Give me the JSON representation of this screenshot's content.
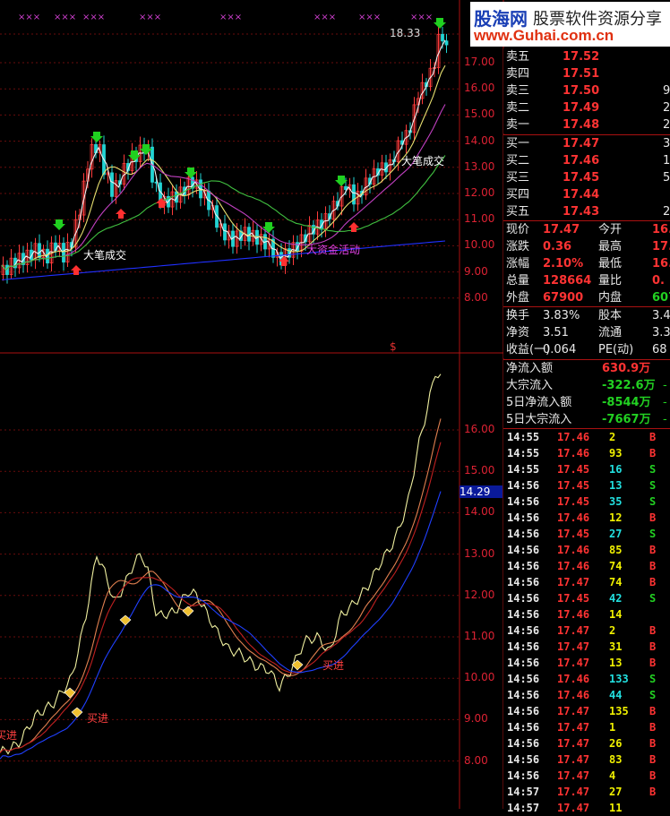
{
  "logo": {
    "brand": "股海网",
    "slogan": "股票软件资源分享",
    "url": "www.Guhai.com.cn"
  },
  "main_chart": {
    "high_label": "18.33",
    "y_ticks": [
      "17.00",
      "16.00",
      "15.00",
      "14.00",
      "13.00",
      "12.00",
      "11.00",
      "10.00",
      "9.00",
      "8.00"
    ],
    "annotations": {
      "big_trade_1": "大笔成交",
      "big_trade_2": "大笔成交",
      "big_money": "大资金活动"
    },
    "dollar_mark": "$"
  },
  "sub_chart": {
    "y_ticks": [
      "16.00",
      "15.00",
      "14.00",
      "13.00",
      "12.00",
      "11.00",
      "10.00",
      "9.00",
      "8.00"
    ],
    "current_value": "14.29",
    "buy_label": "买进"
  },
  "order_book": {
    "asks": [
      {
        "label": "卖五",
        "price": "17.52",
        "vol": ""
      },
      {
        "label": "卖四",
        "price": "17.51",
        "vol": ""
      },
      {
        "label": "卖三",
        "price": "17.50",
        "vol": "9"
      },
      {
        "label": "卖二",
        "price": "17.49",
        "vol": "2"
      },
      {
        "label": "卖一",
        "price": "17.48",
        "vol": "2"
      }
    ],
    "bids": [
      {
        "label": "买一",
        "price": "17.47",
        "vol": "3"
      },
      {
        "label": "买二",
        "price": "17.46",
        "vol": "1"
      },
      {
        "label": "买三",
        "price": "17.45",
        "vol": "5"
      },
      {
        "label": "买四",
        "price": "17.44",
        "vol": ""
      },
      {
        "label": "买五",
        "price": "17.43",
        "vol": "2"
      }
    ]
  },
  "quote": [
    {
      "l1": "现价",
      "v1": "17.47",
      "l2": "今开",
      "v2": "16."
    },
    {
      "l1": "涨跌",
      "v1": "0.36",
      "l2": "最高",
      "v2": "17."
    },
    {
      "l1": "涨幅",
      "v1": "2.10%",
      "l2": "最低",
      "v2": "16."
    },
    {
      "l1": "总量",
      "v1": "128664",
      "l2": "量比",
      "v2": "0."
    },
    {
      "l1": "外盘",
      "v1": "67900",
      "l2": "内盘",
      "v2": "607"
    }
  ],
  "fundamentals": [
    {
      "l1": "换手",
      "v1": "3.83%",
      "l2": "股本",
      "v2": "3.40"
    },
    {
      "l1": "净资",
      "v1": "3.51",
      "l2": "流通",
      "v2": "3.36"
    },
    {
      "l1": "收益(一)",
      "v1": "0.064",
      "l2": "PE(动)",
      "v2": "68"
    }
  ],
  "flows": [
    {
      "label": "净流入额",
      "value": "630.9万",
      "tail": ""
    },
    {
      "label": "大宗流入",
      "value": "-322.6万",
      "tail": "-"
    },
    {
      "label": "5日净流入额",
      "value": "-8544万",
      "tail": "-"
    },
    {
      "label": "5日大宗流入",
      "value": "-7667万",
      "tail": "-"
    }
  ],
  "ticks": [
    {
      "time": "14:55",
      "price": "17.46",
      "vol": "2",
      "side": "B"
    },
    {
      "time": "14:55",
      "price": "17.46",
      "vol": "93",
      "side": "B"
    },
    {
      "time": "14:55",
      "price": "17.45",
      "vol": "16",
      "side": "S"
    },
    {
      "time": "14:56",
      "price": "17.45",
      "vol": "13",
      "side": "S"
    },
    {
      "time": "14:56",
      "price": "17.45",
      "vol": "35",
      "side": "S"
    },
    {
      "time": "14:56",
      "price": "17.46",
      "vol": "12",
      "side": "B"
    },
    {
      "time": "14:56",
      "price": "17.45",
      "vol": "27",
      "side": "S"
    },
    {
      "time": "14:56",
      "price": "17.46",
      "vol": "85",
      "side": "B"
    },
    {
      "time": "14:56",
      "price": "17.46",
      "vol": "74",
      "side": "B"
    },
    {
      "time": "14:56",
      "price": "17.47",
      "vol": "74",
      "side": "B"
    },
    {
      "time": "14:56",
      "price": "17.45",
      "vol": "42",
      "side": "S"
    },
    {
      "time": "14:56",
      "price": "17.46",
      "vol": "14",
      "side": ""
    },
    {
      "time": "14:56",
      "price": "17.47",
      "vol": "2",
      "side": "B"
    },
    {
      "time": "14:56",
      "price": "17.47",
      "vol": "31",
      "side": "B"
    },
    {
      "time": "14:56",
      "price": "17.47",
      "vol": "13",
      "side": "B"
    },
    {
      "time": "14:56",
      "price": "17.46",
      "vol": "133",
      "side": "S"
    },
    {
      "time": "14:56",
      "price": "17.46",
      "vol": "44",
      "side": "S"
    },
    {
      "time": "14:56",
      "price": "17.47",
      "vol": "135",
      "side": "B"
    },
    {
      "time": "14:56",
      "price": "17.47",
      "vol": "1",
      "side": "B"
    },
    {
      "time": "14:56",
      "price": "17.47",
      "vol": "26",
      "side": "B"
    },
    {
      "time": "14:56",
      "price": "17.47",
      "vol": "83",
      "side": "B"
    },
    {
      "time": "14:56",
      "price": "17.47",
      "vol": "4",
      "side": "B"
    },
    {
      "time": "14:57",
      "price": "17.47",
      "vol": "27",
      "side": "B"
    },
    {
      "time": "14:57",
      "price": "17.47",
      "vol": "11",
      "side": ""
    }
  ],
  "colors": {
    "up": "#ff3b3b",
    "down": "#22d4d4",
    "grid": "#7a1010",
    "ma_white": "#f0f0f0",
    "ma_yellow": "#e8e070",
    "ma_purple": "#c040c0",
    "ma_green": "#40c040",
    "ma_blue": "#2030ff"
  }
}
